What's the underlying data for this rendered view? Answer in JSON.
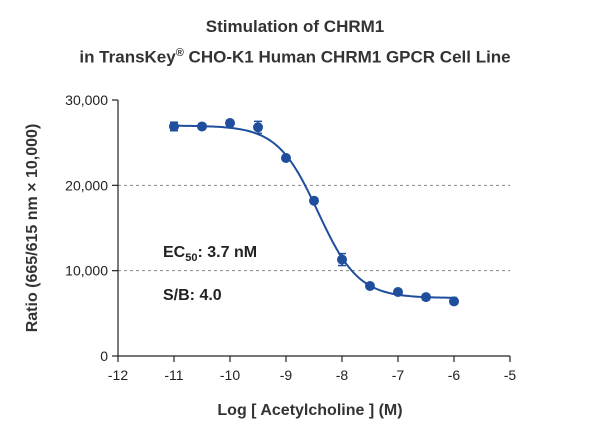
{
  "chart_data": {
    "type": "scatter",
    "title": "Stimulation of  CHRM1",
    "subtitle": {
      "before": "in TransKey",
      "sup": "®",
      "after": " CHO-K1 Human CHRM1 GPCR Cell Line"
    },
    "xlabel": "Log [ Acetylcholine ]  (M)",
    "ylabel": "Ratio (665/615 nm × 10,000)",
    "xlim": [
      -12,
      -5
    ],
    "ylim": [
      0,
      30000
    ],
    "x_ticks": [
      -12,
      -11,
      -10,
      -9,
      -8,
      -7,
      -6,
      -5
    ],
    "y_ticks": [
      0,
      10000,
      20000,
      30000
    ],
    "x_tick_labels": [
      "-12",
      "-11",
      "-10",
      "-9",
      "-8",
      "-7",
      "-6",
      "-5"
    ],
    "y_tick_labels": [
      "0",
      "10,000",
      "20,000",
      "30,000"
    ],
    "gridlines_y": [
      10000,
      20000
    ],
    "series": [
      {
        "x": [
          -11,
          -10.5,
          -10,
          -9.5,
          -9,
          -8.5,
          -8,
          -7.5,
          -7,
          -6.5,
          -6
        ],
        "y": [
          26900,
          26900,
          27300,
          26800,
          23200,
          18200,
          11300,
          8200,
          7500,
          6900,
          6400
        ],
        "error": [
          500,
          300,
          300,
          700,
          300,
          300,
          700,
          300,
          300,
          300,
          300
        ],
        "color": "#1f4e9c"
      }
    ],
    "fit": {
      "top": 27000,
      "bottom": 6800,
      "logEC50": -8.43,
      "hill": -1.2,
      "color": "#1f4e9c"
    },
    "annotations": {
      "ec50_prefix": "EC",
      "ec50_sub": "50",
      "ec50_value": ": 3.7 nM",
      "sb": "S/B: 4.0"
    }
  }
}
